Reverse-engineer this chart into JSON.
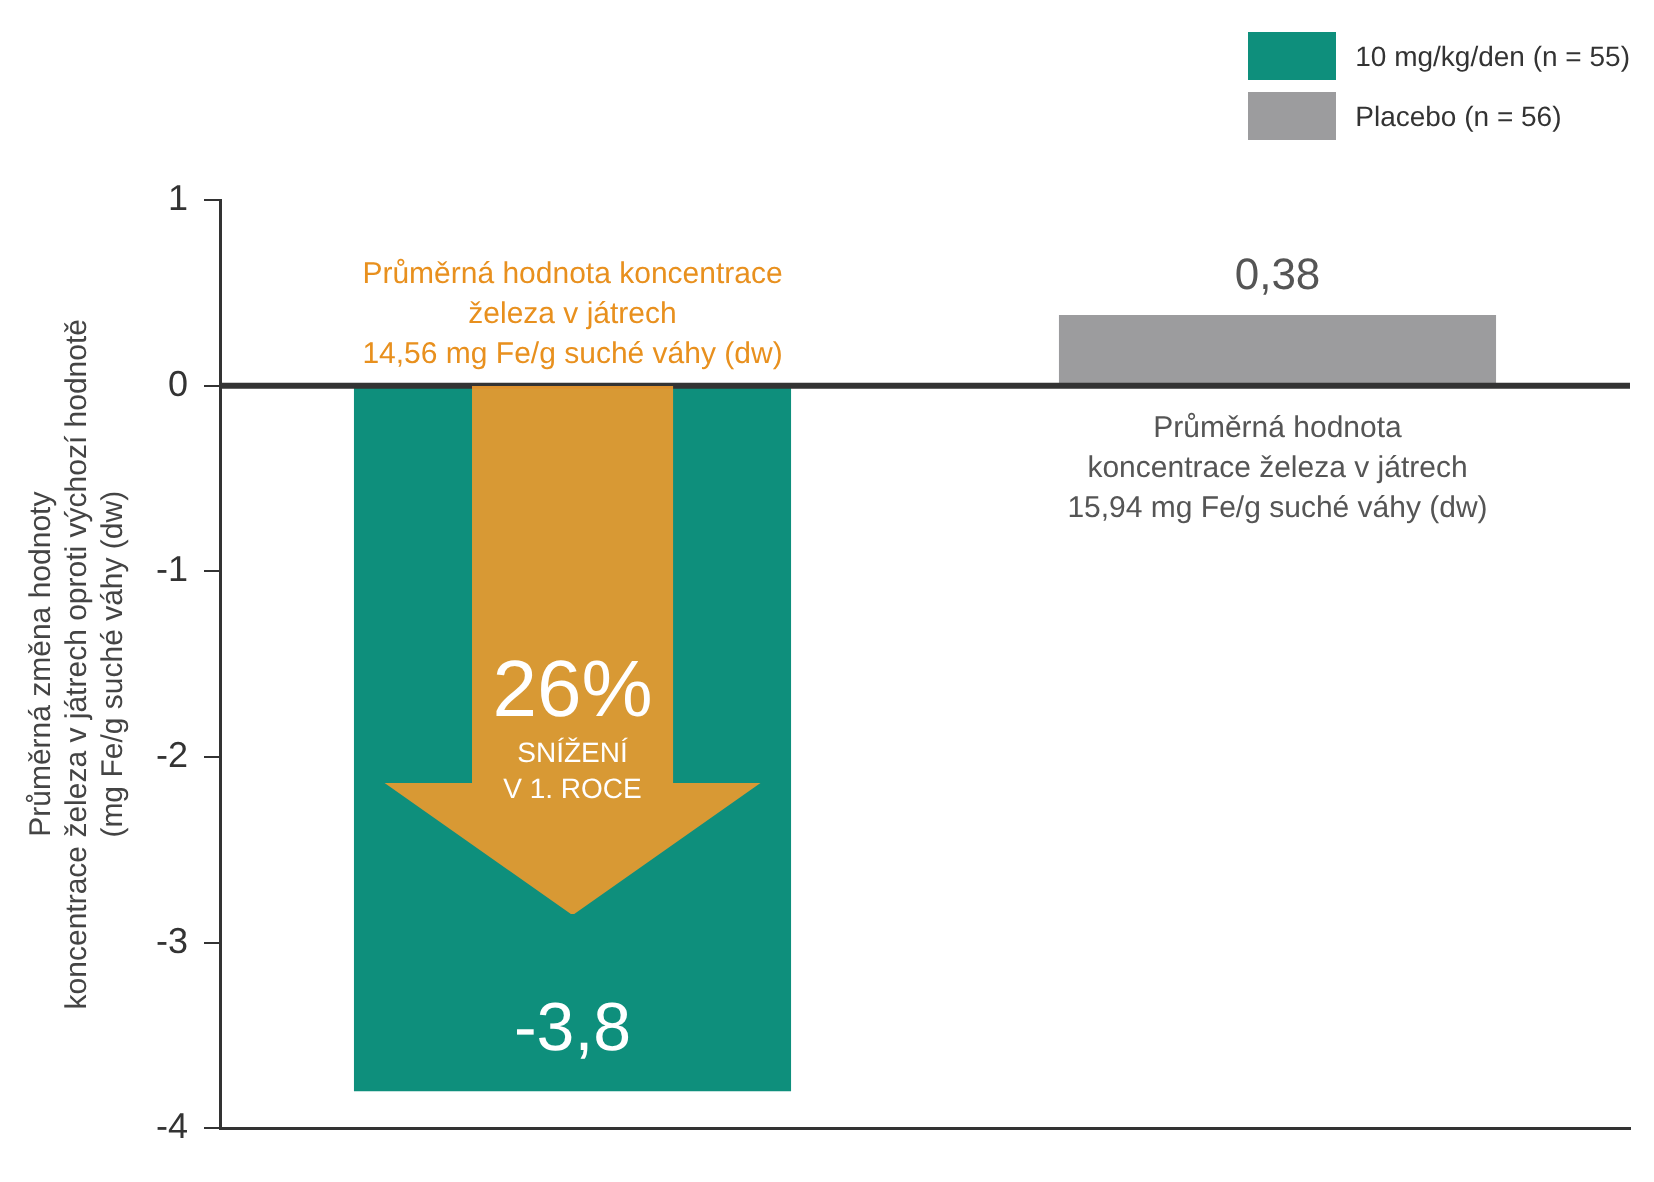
{
  "chart_data": {
    "type": "bar",
    "ylabel": "Průměrná změna hodnoty\nkoncentrace železa v játrech oproti výchozí hodnotě\n(mg Fe/g suché váhy (dw)",
    "categories": [
      null,
      null
    ],
    "series": [
      {
        "name": "10 mg/kg/den (n = 55)",
        "color": "#0e8f7c",
        "values": [
          -3.8,
          null
        ],
        "value_labels": [
          "-3,8",
          null
        ]
      },
      {
        "name": "Placebo (n = 56)",
        "color": "#9c9c9e",
        "values": [
          null,
          0.38
        ],
        "value_labels": [
          null,
          "0,38"
        ]
      }
    ],
    "ylim": [
      -4,
      1
    ],
    "yticks": [
      -4,
      -3,
      -2,
      -1,
      0,
      1
    ],
    "grid": false,
    "legend": "top right",
    "ref_lines": [
      {
        "axis": "y",
        "value": 0,
        "color": "#333333"
      }
    ],
    "annotations": [
      "Průměrná hodnota koncentrace\nželeza v játrech\n14,56 mg Fe/g suché váhy (dw)",
      "Průměrná hodnota\nkoncentrace železa v játrech\n15,94 mg Fe/g suché váhy (dw)",
      "26%",
      "SNÍŽENÍ",
      "V 1. ROCE"
    ]
  }
}
